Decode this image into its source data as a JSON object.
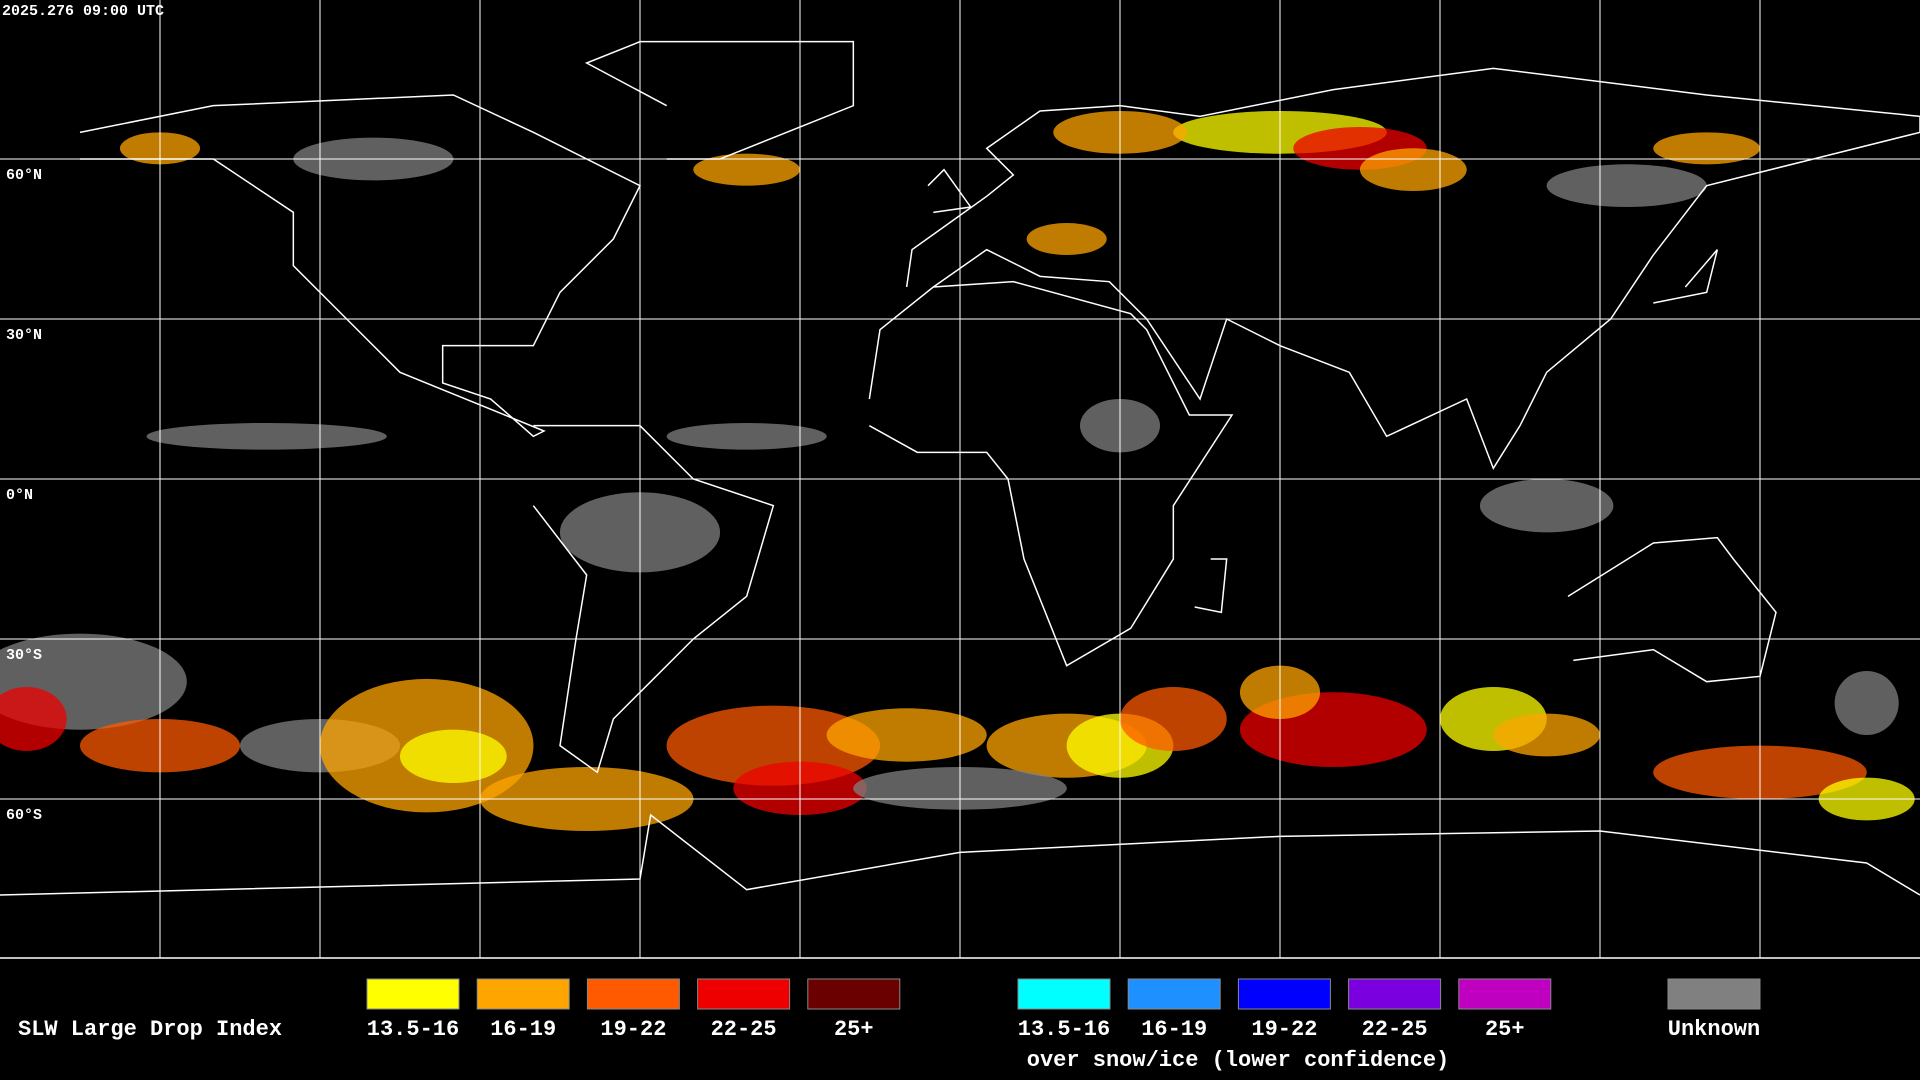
{
  "timestamp": "2025.276 09:00 UTC",
  "lat_labels": [
    "60°N",
    "30°N",
    "0°N",
    "30°S",
    "60°S"
  ],
  "legend": {
    "title": "SLW Large Drop Index",
    "items": [
      {
        "label": "13.5-16",
        "color": "#ffff00"
      },
      {
        "label": "16-19",
        "color": "#ffa500"
      },
      {
        "label": "19-22",
        "color": "#ff5a00"
      },
      {
        "label": "22-25",
        "color": "#ee0000"
      },
      {
        "label": "25+",
        "color": "#6b0000"
      }
    ],
    "snow_items": [
      {
        "label": "13.5-16",
        "color": "#00ffff"
      },
      {
        "label": "16-19",
        "color": "#1e90ff"
      },
      {
        "label": "19-22",
        "color": "#0000ff"
      },
      {
        "label": "22-25",
        "color": "#7a00e0"
      },
      {
        "label": "25+",
        "color": "#c000c0"
      }
    ],
    "snow_note": "over snow/ice (lower confidence)",
    "unknown": {
      "label": "Unknown",
      "color": "#808080"
    }
  }
}
